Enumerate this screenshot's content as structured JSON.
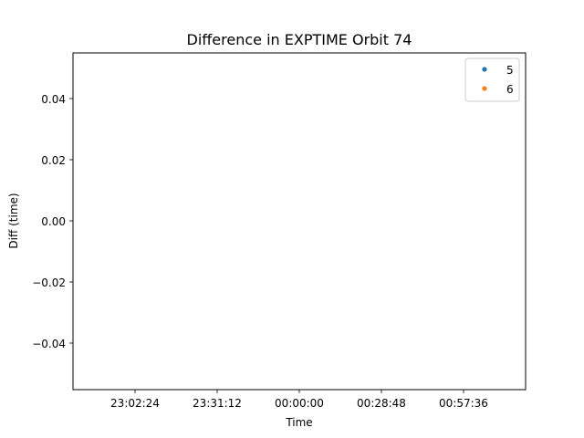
{
  "chart_data": {
    "type": "scatter",
    "title": "Difference in EXPTIME Orbit 74",
    "xlabel": "Time",
    "ylabel": "Diff (time)",
    "x_ticks": [
      "23:02:24",
      "23:31:12",
      "00:00:00",
      "00:28:48",
      "00:57:36"
    ],
    "y_ticks": [
      "0.04",
      "0.02",
      "0.00",
      "−0.02",
      "−0.04"
    ],
    "ylim": [
      -0.055,
      0.055
    ],
    "grid": false,
    "legend_position": "top-right",
    "series": [
      {
        "name": "5",
        "color": "#1f77b4",
        "points": []
      },
      {
        "name": "6",
        "color": "#ff7f0e",
        "points": []
      }
    ]
  }
}
